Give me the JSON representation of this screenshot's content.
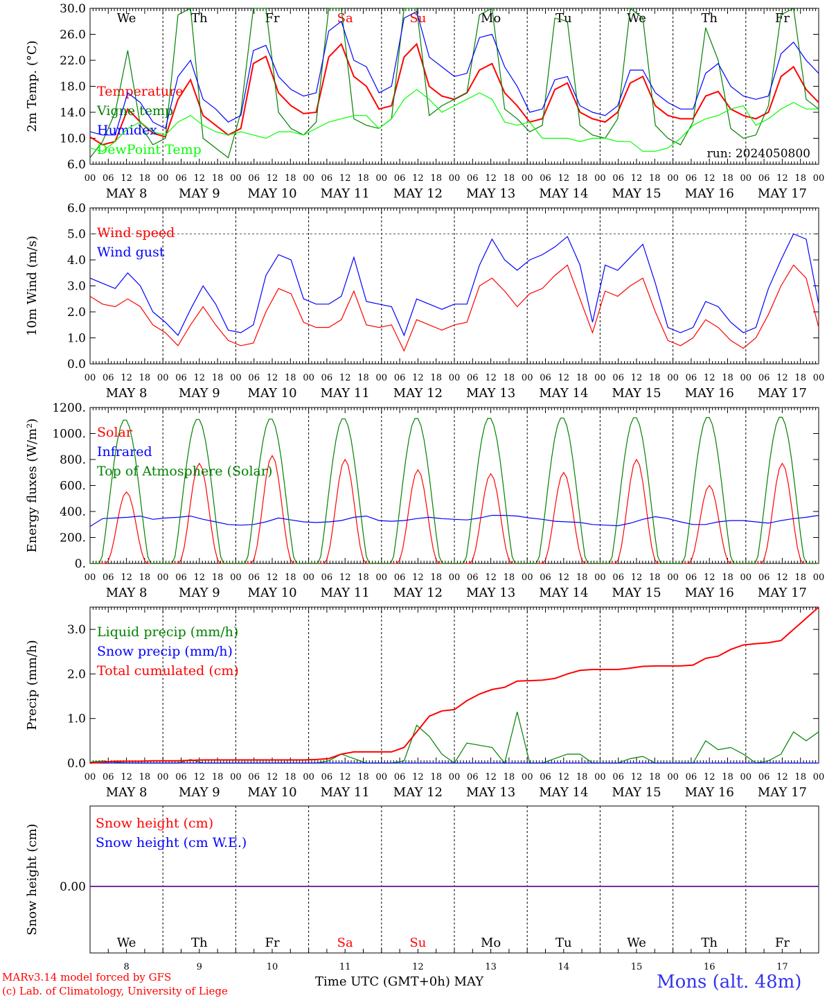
{
  "run_label": "run: 2024050800",
  "days": {
    "weekday": [
      "We",
      "Th",
      "Fr",
      "Sa",
      "Su",
      "Mo",
      "Tu",
      "We",
      "Th",
      "Fr"
    ],
    "weekend_color": "#ff0000",
    "weekday_color": "#000000",
    "date_labels": [
      "MAY  8",
      "MAY  9",
      "MAY 10",
      "MAY 11",
      "MAY 12",
      "MAY 13",
      "MAY 14",
      "MAY 15",
      "MAY 16",
      "MAY 17"
    ],
    "day_numbers": [
      "8",
      "9",
      "10",
      "11",
      "12",
      "13",
      "14",
      "15",
      "16",
      "17"
    ],
    "hour_ticks": [
      "00",
      "06",
      "12",
      "18"
    ],
    "final_tick": "00"
  },
  "footer": {
    "model_line": "MARv3.14 model forced by GFS",
    "credit_line": "(c) Lab. of Climatology, University of Liege",
    "xlabel": "Time UTC (GMT+0h)",
    "month": "MAY",
    "station": "Mons (alt. 48m)"
  },
  "chart_data": [
    {
      "type": "line",
      "id": "temperature",
      "ylabel": "2m Temp. (°C)",
      "ylim": [
        6,
        30
      ],
      "yticks": [
        "6.0",
        "10.0",
        "14.0",
        "18.0",
        "22.0",
        "26.0",
        "30.0"
      ],
      "ytick_values": [
        6,
        10,
        14,
        18,
        22,
        26,
        30
      ],
      "hourly_resolution_h": 6,
      "series": [
        {
          "name": "Temperature",
          "color": "#ff0000",
          "values": [
            10.2,
            9.0,
            9.5,
            14.5,
            12.5,
            10.8,
            10.2,
            16.0,
            19.0,
            13.5,
            12.0,
            10.5,
            11.5,
            21.5,
            22.6,
            17.0,
            15.0,
            13.8,
            14.0,
            22.5,
            24.5,
            19.5,
            18.0,
            14.5,
            15.0,
            22.5,
            24.5,
            18.0,
            16.5,
            16.0,
            17.0,
            20.5,
            21.5,
            17.0,
            15.0,
            12.5,
            13.0,
            17.5,
            18.5,
            14.0,
            13.0,
            12.5,
            14.0,
            18.5,
            19.5,
            15.0,
            13.5,
            13.0,
            13.0,
            16.5,
            17.2,
            14.5,
            13.5,
            13.0,
            14.0,
            19.5,
            21.0,
            17.5,
            15.5
          ]
        },
        {
          "name": "Vigne temp",
          "color": "#008000",
          "values": [
            7.0,
            9.5,
            14.0,
            23.5,
            12.0,
            9.0,
            10.0,
            29.0,
            30.0,
            10.0,
            8.5,
            7.0,
            14.0,
            30.0,
            30.0,
            14.0,
            11.5,
            10.5,
            12.5,
            30.0,
            30.0,
            13.0,
            12.0,
            11.5,
            13.0,
            30.0,
            30.0,
            13.5,
            15.0,
            16.0,
            17.0,
            29.0,
            30.0,
            14.5,
            13.0,
            11.0,
            12.0,
            28.5,
            28.0,
            12.0,
            10.5,
            10.0,
            13.0,
            30.0,
            28.5,
            12.0,
            10.0,
            9.0,
            12.5,
            27.0,
            22.0,
            11.5,
            10.0,
            10.5,
            15.0,
            29.0,
            30.0,
            16.0,
            14.5
          ]
        },
        {
          "name": "Humidex",
          "color": "#0000ff",
          "values": [
            11.0,
            10.5,
            10.5,
            17.0,
            15.5,
            12.5,
            11.5,
            19.5,
            22.0,
            16.0,
            14.5,
            12.5,
            13.5,
            23.5,
            24.3,
            19.5,
            17.5,
            16.5,
            17.0,
            26.5,
            28.0,
            22.0,
            21.0,
            17.0,
            18.0,
            28.5,
            29.5,
            22.5,
            21.0,
            19.5,
            20.0,
            25.5,
            26.0,
            21.0,
            18.0,
            14.0,
            14.5,
            19.0,
            19.5,
            15.0,
            14.0,
            13.5,
            15.0,
            20.5,
            20.5,
            17.0,
            15.5,
            14.5,
            14.5,
            20.0,
            21.5,
            18.0,
            16.5,
            16.0,
            16.5,
            23.0,
            24.8,
            22.0,
            20.0
          ]
        },
        {
          "name": "DewPoint Temp",
          "color": "#00ff00",
          "values": [
            8.5,
            8.0,
            9.5,
            11.5,
            12.5,
            11.0,
            10.5,
            12.5,
            13.5,
            12.0,
            11.0,
            10.5,
            11.0,
            10.5,
            10.0,
            11.0,
            11.0,
            10.5,
            11.5,
            12.5,
            13.0,
            13.5,
            13.5,
            11.5,
            13.0,
            16.0,
            17.5,
            16.0,
            14.0,
            15.0,
            16.0,
            17.0,
            16.0,
            12.5,
            12.0,
            12.5,
            10.0,
            10.0,
            10.0,
            9.5,
            10.0,
            10.0,
            9.5,
            9.5,
            8.0,
            8.0,
            8.5,
            10.0,
            12.0,
            13.0,
            13.5,
            14.5,
            15.0,
            12.0,
            13.0,
            14.5,
            15.5,
            14.5,
            14.5
          ]
        }
      ]
    },
    {
      "type": "line",
      "id": "wind",
      "ylabel": "10m Wind (m/s)",
      "ylim": [
        0,
        6
      ],
      "yticks": [
        "0.0",
        "1.0",
        "2.0",
        "3.0",
        "4.0",
        "5.0",
        "6.0"
      ],
      "ytick_values": [
        0,
        1,
        2,
        3,
        4,
        5,
        6
      ],
      "reference_line": 5.0,
      "hourly_resolution_h": 6,
      "series": [
        {
          "name": "Wind speed",
          "color": "#ff0000",
          "values": [
            2.6,
            2.3,
            2.2,
            2.5,
            2.2,
            1.5,
            1.2,
            0.7,
            1.5,
            2.2,
            1.5,
            0.9,
            0.7,
            0.8,
            2.0,
            2.9,
            2.7,
            1.6,
            1.4,
            1.4,
            1.7,
            2.8,
            1.5,
            1.4,
            1.5,
            0.5,
            1.7,
            1.5,
            1.3,
            1.5,
            1.6,
            3.0,
            3.3,
            2.8,
            2.2,
            2.7,
            2.9,
            3.4,
            3.8,
            2.5,
            1.2,
            2.8,
            2.6,
            3.0,
            3.3,
            2.0,
            0.9,
            0.7,
            1.0,
            1.7,
            1.4,
            0.9,
            0.6,
            1.0,
            1.9,
            3.0,
            3.8,
            3.3,
            1.4
          ]
        },
        {
          "name": "Wind gust",
          "color": "#0000ff",
          "values": [
            3.3,
            3.1,
            2.9,
            3.5,
            3.0,
            2.0,
            1.6,
            1.1,
            2.1,
            3.0,
            2.3,
            1.3,
            1.2,
            1.5,
            3.4,
            4.2,
            4.0,
            2.5,
            2.3,
            2.3,
            2.6,
            4.1,
            2.4,
            2.3,
            2.2,
            1.1,
            2.5,
            2.3,
            2.1,
            2.3,
            2.3,
            3.8,
            4.8,
            4.0,
            3.6,
            4.0,
            4.2,
            4.5,
            4.9,
            3.8,
            1.6,
            3.8,
            3.6,
            4.1,
            4.6,
            3.1,
            1.4,
            1.2,
            1.4,
            2.4,
            2.2,
            1.6,
            1.2,
            1.4,
            2.9,
            4.0,
            5.0,
            4.8,
            2.3
          ]
        }
      ]
    },
    {
      "type": "line",
      "id": "energy",
      "ylabel": "Energy fluxes (W/m²)",
      "ylim": [
        0,
        1200
      ],
      "yticks": [
        "0.",
        "200.",
        "400.",
        "600.",
        "800.",
        "1000.",
        "1200."
      ],
      "ytick_values": [
        0,
        200,
        400,
        600,
        800,
        1000,
        1200
      ],
      "hourly_resolution_h": 6,
      "series": [
        {
          "name": "Solar",
          "color": "#ff0000",
          "peaks_per_day": [
            550,
            770,
            830,
            800,
            720,
            690,
            700,
            800,
            600,
            770
          ]
        },
        {
          "name": "Infrared",
          "color": "#0000ff",
          "values": [
            285,
            345,
            350,
            355,
            365,
            340,
            350,
            355,
            365,
            340,
            320,
            300,
            295,
            300,
            320,
            350,
            335,
            320,
            315,
            320,
            330,
            355,
            365,
            330,
            325,
            330,
            345,
            355,
            345,
            340,
            335,
            350,
            370,
            370,
            365,
            350,
            340,
            325,
            320,
            315,
            300,
            295,
            290,
            310,
            340,
            360,
            345,
            320,
            300,
            300,
            320,
            330,
            330,
            320,
            310,
            330,
            345,
            355,
            370
          ]
        },
        {
          "name": "Top of Atmosphere (Solar)",
          "color": "#008000",
          "peaks_per_day": [
            1110,
            1115,
            1118,
            1120,
            1122,
            1124,
            1126,
            1128,
            1130,
            1132
          ]
        }
      ]
    },
    {
      "type": "line",
      "id": "precip",
      "ylabel": "Precip (mm/h)",
      "ylim": [
        0,
        3.5
      ],
      "yticks": [
        "0.0",
        "1.0",
        "2.0",
        "3.0"
      ],
      "ytick_values": [
        0,
        1,
        2,
        3
      ],
      "hourly_resolution_h": 6,
      "series": [
        {
          "name": "Liquid precip (mm/h)",
          "color": "#008000",
          "values": [
            0.02,
            0.05,
            0.02,
            0.0,
            0.0,
            0.0,
            0.0,
            0.0,
            0.08,
            0.0,
            0.0,
            0.0,
            0.0,
            0.0,
            0.0,
            0.0,
            0.0,
            0.0,
            0.0,
            0.05,
            0.2,
            0.1,
            0.0,
            0.0,
            0.0,
            0.05,
            0.85,
            0.6,
            0.2,
            0.0,
            0.45,
            0.4,
            0.35,
            0.0,
            1.15,
            0.0,
            0.0,
            0.1,
            0.2,
            0.2,
            0.0,
            0.0,
            0.0,
            0.1,
            0.15,
            0.0,
            0.0,
            0.0,
            0.0,
            0.5,
            0.3,
            0.35,
            0.2,
            0.0,
            0.05,
            0.2,
            0.7,
            0.5,
            0.7
          ]
        },
        {
          "name": "Snow precip (mm/h)",
          "color": "#0000ff",
          "values": [
            0,
            0,
            0,
            0,
            0,
            0,
            0,
            0,
            0,
            0,
            0,
            0,
            0,
            0,
            0,
            0,
            0,
            0,
            0,
            0,
            0,
            0,
            0,
            0,
            0,
            0,
            0,
            0,
            0,
            0,
            0,
            0,
            0,
            0,
            0,
            0,
            0,
            0,
            0,
            0,
            0,
            0,
            0,
            0,
            0,
            0,
            0,
            0,
            0,
            0,
            0,
            0,
            0,
            0,
            0,
            0,
            0,
            0,
            0
          ]
        },
        {
          "name": "Total cumulated (cm)",
          "color": "#ff0000",
          "values": [
            0.0,
            0.02,
            0.04,
            0.04,
            0.04,
            0.05,
            0.05,
            0.05,
            0.06,
            0.07,
            0.07,
            0.07,
            0.07,
            0.07,
            0.07,
            0.07,
            0.07,
            0.07,
            0.08,
            0.1,
            0.2,
            0.25,
            0.25,
            0.25,
            0.25,
            0.35,
            0.7,
            1.05,
            1.17,
            1.2,
            1.4,
            1.55,
            1.65,
            1.7,
            1.84,
            1.85,
            1.86,
            1.9,
            2.0,
            2.08,
            2.1,
            2.1,
            2.1,
            2.13,
            2.17,
            2.18,
            2.18,
            2.18,
            2.2,
            2.35,
            2.4,
            2.55,
            2.65,
            2.68,
            2.7,
            2.75,
            3.0,
            3.25,
            3.5
          ]
        }
      ]
    },
    {
      "type": "line",
      "id": "snow",
      "ylabel": "Snow height (cm)",
      "yticks": [
        "0.00"
      ],
      "ytick_values": [
        0
      ],
      "series": [
        {
          "name": "Snow height (cm)",
          "color": "#ff0000",
          "values": [
            0,
            0
          ]
        },
        {
          "name": "Snow height (cm W.E.)",
          "color": "#0000ff",
          "values": [
            0,
            0
          ]
        }
      ],
      "zero_line_color": "#7030a0"
    }
  ]
}
